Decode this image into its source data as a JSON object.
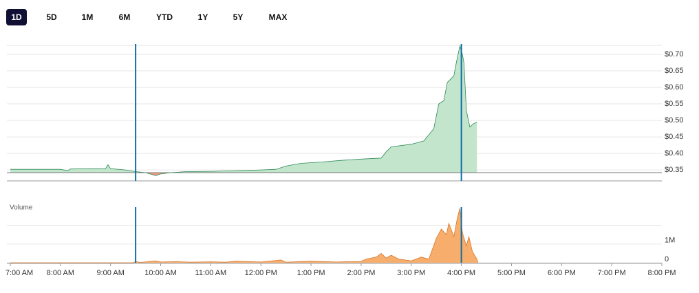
{
  "ranges": [
    "1D",
    "5D",
    "1M",
    "6M",
    "YTD",
    "1Y",
    "5Y",
    "MAX"
  ],
  "selected": "1D",
  "chart_data": [
    {
      "type": "area",
      "color": "#2e8b57",
      "fill": "#c2e5cc",
      "below_fill": "#f29b86",
      "baseline": 0.342,
      "xlim": [
        7,
        20
      ],
      "ylim": [
        0.317,
        0.727
      ],
      "yticks": [
        {
          "value": 0.7,
          "label": "$0.70"
        },
        {
          "value": 0.65,
          "label": "$0.65"
        },
        {
          "value": 0.6,
          "label": "$0.60"
        },
        {
          "value": 0.55,
          "label": "$0.55"
        },
        {
          "value": 0.5,
          "label": "$0.50"
        },
        {
          "value": 0.45,
          "label": "$0.45"
        },
        {
          "value": 0.4,
          "label": "$0.40"
        },
        {
          "value": 0.35,
          "label": "$0.35"
        }
      ],
      "markers": [
        9.5,
        16
      ],
      "x": [
        7.0,
        8.0,
        8.15,
        8.2,
        8.9,
        8.95,
        9.0,
        9.3,
        9.5,
        9.7,
        9.9,
        10.0,
        10.2,
        10.5,
        11.0,
        11.5,
        12.0,
        12.3,
        12.5,
        12.8,
        13.2,
        13.6,
        14.0,
        14.4,
        14.5,
        14.6,
        15.0,
        15.25,
        15.45,
        15.55,
        15.65,
        15.72,
        15.85,
        15.9,
        15.97,
        16.02,
        16.05,
        16.1,
        16.17,
        16.24,
        16.31
      ],
      "values": [
        0.352,
        0.352,
        0.348,
        0.353,
        0.354,
        0.366,
        0.354,
        0.35,
        0.345,
        0.342,
        0.333,
        0.338,
        0.342,
        0.345,
        0.346,
        0.348,
        0.35,
        0.352,
        0.362,
        0.37,
        0.374,
        0.379,
        0.383,
        0.386,
        0.405,
        0.42,
        0.428,
        0.438,
        0.475,
        0.55,
        0.56,
        0.615,
        0.635,
        0.675,
        0.725,
        0.7,
        0.675,
        0.53,
        0.48,
        0.49,
        0.495
      ]
    },
    {
      "type": "area",
      "title": "Volume",
      "color": "#d9782d",
      "fill": "#f7ad6c",
      "xlim": [
        7,
        20
      ],
      "ylim": [
        0,
        2900000
      ],
      "yticks": [
        0,
        {
          "value": 1000000,
          "label": "1M"
        },
        {
          "value": 2000000,
          "label": null
        }
      ],
      "xticks": [
        {
          "value": 7,
          "label": "7:00 AM"
        },
        {
          "value": 8,
          "label": "8:00 AM"
        },
        {
          "value": 9,
          "label": "9:00 AM"
        },
        {
          "value": 10,
          "label": "10:00 AM"
        },
        {
          "value": 11,
          "label": "11:00 AM"
        },
        {
          "value": 12,
          "label": "12:00 PM"
        },
        {
          "value": 13,
          "label": "1:00 PM"
        },
        {
          "value": 14,
          "label": "2:00 PM"
        },
        {
          "value": 15,
          "label": "3:00 PM"
        },
        {
          "value": 16,
          "label": "4:00 PM"
        },
        {
          "value": 17,
          "label": "5:00 PM"
        },
        {
          "value": 18,
          "label": "6:00 PM"
        },
        {
          "value": 19,
          "label": "7:00 PM"
        },
        {
          "value": 20,
          "label": "8:00 PM"
        }
      ],
      "markers": [
        9.5,
        16
      ],
      "x": [
        7.0,
        9.45,
        9.5,
        9.6,
        9.9,
        10.0,
        10.3,
        10.6,
        11.0,
        11.3,
        11.5,
        12.0,
        12.4,
        12.5,
        13.0,
        13.5,
        14.0,
        14.1,
        14.3,
        14.4,
        14.5,
        14.6,
        14.75,
        15.0,
        15.2,
        15.35,
        15.5,
        15.6,
        15.7,
        15.75,
        15.85,
        15.92,
        15.97,
        16.02,
        16.1,
        16.15,
        16.22,
        16.31,
        16.33
      ],
      "values": [
        0,
        0,
        60000,
        20000,
        100000,
        40000,
        60000,
        30000,
        50000,
        30000,
        80000,
        40000,
        150000,
        30000,
        80000,
        40000,
        70000,
        200000,
        300000,
        500000,
        250000,
        400000,
        200000,
        100000,
        300000,
        200000,
        1300000,
        1800000,
        1500000,
        2100000,
        1400000,
        2400000,
        2900000,
        1600000,
        900000,
        1400000,
        600000,
        200000,
        0
      ]
    }
  ]
}
